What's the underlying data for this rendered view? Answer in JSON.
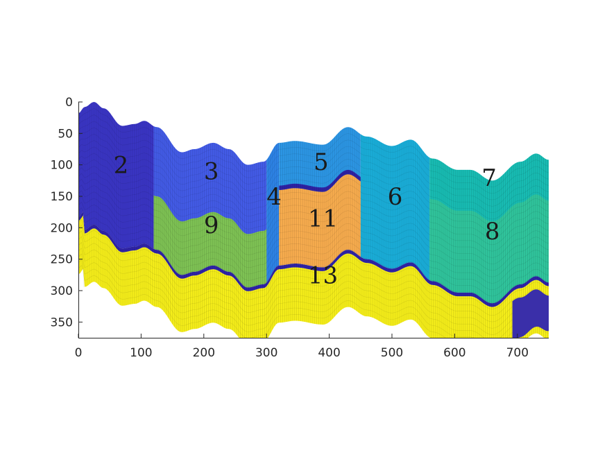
{
  "chart_data": {
    "type": "area",
    "title": "",
    "xlabel": "",
    "ylabel": "",
    "xlim": [
      0,
      750
    ],
    "ylim": [
      375,
      0
    ],
    "y_direction": "reversed",
    "grid": false,
    "x_ticks": [
      "0",
      "100",
      "200",
      "300",
      "400",
      "500",
      "600",
      "700"
    ],
    "y_ticks": [
      "0",
      "50",
      "100",
      "150",
      "200",
      "250",
      "300",
      "350"
    ],
    "surface": {
      "base": [
        [
          0,
          18
        ],
        [
          10,
          8
        ],
        [
          25,
          0
        ],
        [
          40,
          10
        ],
        [
          70,
          38
        ],
        [
          90,
          35
        ],
        [
          105,
          30
        ],
        [
          125,
          40
        ],
        [
          165,
          80
        ],
        [
          185,
          75
        ],
        [
          215,
          65
        ],
        [
          240,
          75
        ],
        [
          270,
          100
        ],
        [
          295,
          95
        ],
        [
          320,
          65
        ],
        [
          345,
          62
        ],
        [
          390,
          68
        ],
        [
          430,
          40
        ],
        [
          460,
          55
        ],
        [
          500,
          70
        ],
        [
          530,
          60
        ],
        [
          565,
          90
        ],
        [
          605,
          108
        ],
        [
          625,
          108
        ],
        [
          660,
          125
        ],
        [
          705,
          95
        ],
        [
          730,
          82
        ],
        [
          750,
          92
        ]
      ]
    },
    "layers": [
      {
        "name": "upper",
        "color": "#3e48cf",
        "thickness": 195
      },
      {
        "name": "band",
        "color": "#2f23a6",
        "thickness": 6
      },
      {
        "name": "lower",
        "color": "#f5ee1a",
        "thickness": 85
      }
    ],
    "regions": [
      {
        "label": "2",
        "color": "#3a35c4",
        "x_range": [
          0,
          120
        ],
        "layer": "upper"
      },
      {
        "label": "3",
        "color": "#435be6",
        "x_range": [
          120,
          300
        ],
        "layer": "upper"
      },
      {
        "label": "4",
        "color": "#2d83e6",
        "x_range": [
          300,
          320
        ],
        "layer": "upper"
      },
      {
        "label": "5",
        "color": "#2c96e4",
        "x_range": [
          320,
          450
        ],
        "layer": "upper"
      },
      {
        "label": "6",
        "color": "#1aaed9",
        "x_range": [
          450,
          560
        ],
        "layer": "upper"
      },
      {
        "label": "7",
        "color": "#18bcb3",
        "x_range": [
          560,
          750
        ],
        "layer": "upper"
      },
      {
        "label": "8",
        "color": "#30c49c",
        "x_range": [
          560,
          750
        ],
        "layer": "mid"
      },
      {
        "label": "9",
        "color": "#7ec254",
        "x_range": [
          120,
          300
        ],
        "layer": "mid"
      },
      {
        "label": "11",
        "color": "#f7ac4e",
        "x_range": [
          320,
          450
        ],
        "layer": "mid"
      },
      {
        "label": "13",
        "color": "#f5ee1a",
        "x_range": [
          0,
          750
        ],
        "layer": "lower"
      }
    ]
  }
}
